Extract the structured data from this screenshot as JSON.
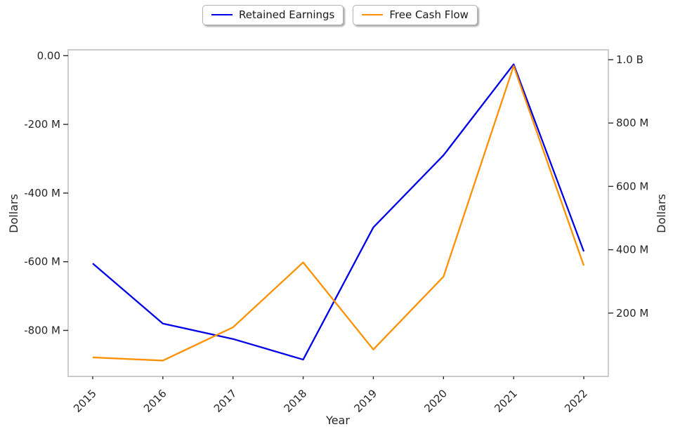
{
  "legend": {
    "position": "top-center",
    "items": [
      {
        "label": "Retained Earnings",
        "color": "#0000e8"
      },
      {
        "label": "Free Cash Flow",
        "color": "#ff9000"
      }
    ]
  },
  "chart_data": {
    "type": "line",
    "title": "",
    "xlabel": "Year",
    "grid": false,
    "x": [
      2015,
      2016,
      2017,
      2018,
      2019,
      2020,
      2021,
      2022
    ],
    "x_tick_labels": [
      "2015",
      "2016",
      "2017",
      "2018",
      "2019",
      "2020",
      "2021",
      "2022"
    ],
    "series": [
      {
        "name": "Retained Earnings",
        "axis": "left",
        "color": "#0000e8",
        "units": "USD millions",
        "values": [
          -605,
          -780,
          -825,
          -885,
          -500,
          -290,
          -25,
          -570
        ]
      },
      {
        "name": "Free Cash Flow",
        "axis": "right",
        "color": "#ff9000",
        "units": "USD millions",
        "values": [
          60,
          50,
          155,
          360,
          85,
          315,
          980,
          350
        ]
      }
    ],
    "left_axis": {
      "label": "Dollars",
      "range": [
        -934,
        17
      ],
      "ticks": [
        {
          "v": 0,
          "t": "0.00"
        },
        {
          "v": -200,
          "t": "-200 M"
        },
        {
          "v": -400,
          "t": "-400 M"
        },
        {
          "v": -600,
          "t": "-600 M"
        },
        {
          "v": -800,
          "t": "-800 M"
        }
      ]
    },
    "right_axis": {
      "label": "Dollars",
      "range": [
        0,
        1031
      ],
      "ticks": [
        {
          "v": 1000,
          "t": "1.0 B"
        },
        {
          "v": 800,
          "t": "800 M"
        },
        {
          "v": 600,
          "t": "600 M"
        },
        {
          "v": 400,
          "t": "400 M"
        },
        {
          "v": 200,
          "t": "200 M"
        }
      ]
    }
  },
  "style": {
    "spine_color": "#cccccc",
    "tick_mark_color": "#2b2b2b",
    "text_color": "#262626",
    "background": "#ffffff"
  }
}
